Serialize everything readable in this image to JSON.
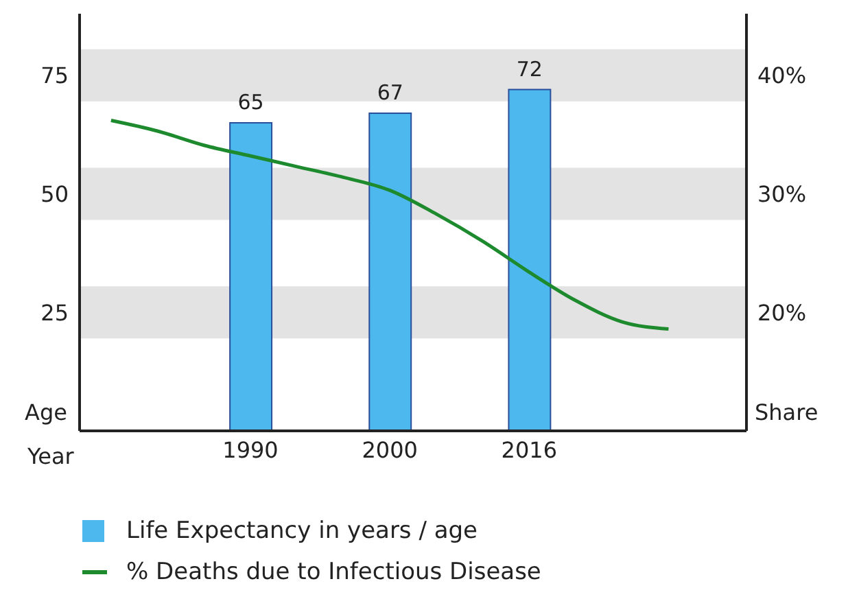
{
  "chart_data": {
    "type": "bar",
    "xlabel": "Year",
    "ylabel": "Age",
    "y2label": "Share",
    "categories": [
      null,
      null,
      null,
      "1990",
      null,
      null,
      "2000",
      null,
      null,
      "2016",
      null,
      null,
      null,
      null
    ],
    "series": [
      {
        "name": "Life Expectancy in years / age",
        "color": "#4db8ee",
        "values": [
          null,
          null,
          null,
          65,
          null,
          null,
          67,
          null,
          null,
          72,
          null,
          null,
          null,
          null
        ],
        "value_labels": [
          null,
          null,
          null,
          "65",
          null,
          null,
          "67",
          null,
          null,
          "72",
          null,
          null,
          null,
          null
        ]
      },
      {
        "name": "% Deaths due to Infectious Disease",
        "type": "line",
        "axis": "y2",
        "color": "#1e8a2e",
        "values": [
          36.2,
          35.3,
          34.1,
          33.2,
          32.3,
          31.4,
          30.3,
          28.3,
          26.0,
          23.4,
          21.0,
          19.2,
          18.6,
          null
        ]
      }
    ],
    "ylim": [
      0,
      88
    ],
    "yticks": [
      25,
      50,
      75
    ],
    "y2lim": [
      10,
      45.2
    ],
    "y2ticks": [
      {
        "value": 20,
        "label": "20%"
      },
      {
        "value": 30,
        "label": "30%"
      },
      {
        "value": 40,
        "label": "40%"
      }
    ],
    "grid": "y",
    "legend": "bottom",
    "marker": "none",
    "line_style": "solid"
  }
}
